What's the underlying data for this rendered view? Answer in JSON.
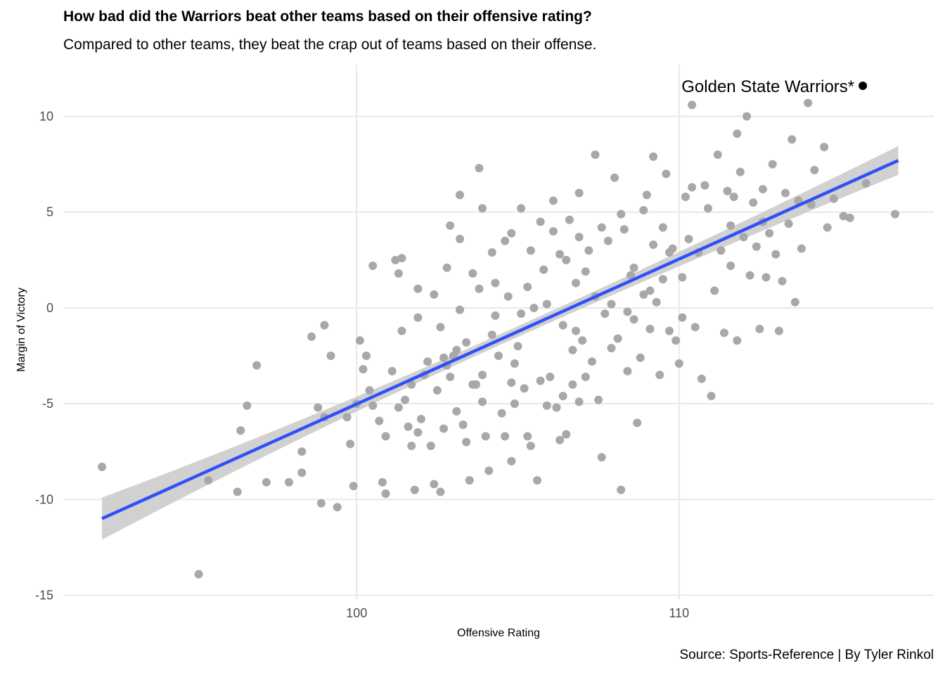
{
  "chart_data": {
    "type": "scatter",
    "title": "How bad did the Warriors beat other teams based on their offensive rating?",
    "subtitle": "Compared to other teams, they beat the crap out of teams based on their offense.",
    "caption": "Source: Sports-Reference | By Tyler Rinkol",
    "xlabel": "Offensive Rating",
    "ylabel": "Margin of Victory",
    "xlim": [
      90.9,
      117.9
    ],
    "ylim": [
      -15.2,
      12.7
    ],
    "x_ticks": [
      100,
      110
    ],
    "y_ticks": [
      10,
      5,
      0,
      -5,
      -10,
      -15
    ],
    "grid": true,
    "colors": {
      "points": "#a8a8a8",
      "highlight": "#000000",
      "trend": "#3050f8",
      "ribbon": "#cccccc",
      "grid": "#e8e8e8"
    },
    "highlight": {
      "label": "Golden State Warriors*",
      "x": 115.7,
      "y": 11.6
    },
    "trend": {
      "method": "linear",
      "x": [
        92.1,
        116.8
      ],
      "y": [
        -11.0,
        7.7
      ],
      "ribbon_lower": [
        -12.1,
        7.0
      ],
      "ribbon_upper": [
        -9.9,
        8.5
      ]
    },
    "points": [
      [
        92.1,
        -8.3
      ],
      [
        95.1,
        -13.9
      ],
      [
        95.4,
        -9.0
      ],
      [
        96.3,
        -9.6
      ],
      [
        96.4,
        -6.4
      ],
      [
        96.6,
        -5.1
      ],
      [
        96.9,
        -3.0
      ],
      [
        97.2,
        -9.1
      ],
      [
        97.9,
        -9.1
      ],
      [
        98.3,
        -7.5
      ],
      [
        98.3,
        -8.6
      ],
      [
        98.6,
        -1.5
      ],
      [
        98.8,
        -5.2
      ],
      [
        98.9,
        -10.2
      ],
      [
        99.0,
        -5.7
      ],
      [
        99.2,
        -2.5
      ],
      [
        99.4,
        -10.4
      ],
      [
        99.7,
        -5.7
      ],
      [
        99.8,
        -7.1
      ],
      [
        99.9,
        -9.3
      ],
      [
        100.0,
        -5.0
      ],
      [
        100.1,
        -1.7
      ],
      [
        100.2,
        -3.2
      ],
      [
        100.3,
        -2.5
      ],
      [
        100.4,
        -4.3
      ],
      [
        100.5,
        2.2
      ],
      [
        100.5,
        -5.1
      ],
      [
        100.7,
        -5.9
      ],
      [
        100.8,
        -9.1
      ],
      [
        100.9,
        -6.7
      ],
      [
        100.9,
        -9.7
      ],
      [
        101.1,
        -3.3
      ],
      [
        101.2,
        2.5
      ],
      [
        101.3,
        1.8
      ],
      [
        101.3,
        -5.2
      ],
      [
        101.4,
        2.6
      ],
      [
        101.5,
        -4.8
      ],
      [
        101.6,
        -6.2
      ],
      [
        101.7,
        -4.0
      ],
      [
        101.7,
        -7.2
      ],
      [
        101.8,
        -9.5
      ],
      [
        101.9,
        1.0
      ],
      [
        101.9,
        -6.5
      ],
      [
        102.0,
        -5.8
      ],
      [
        102.1,
        -3.5
      ],
      [
        102.2,
        -2.8
      ],
      [
        102.3,
        -7.2
      ],
      [
        102.4,
        -9.2
      ],
      [
        102.5,
        -4.3
      ],
      [
        102.6,
        -1.0
      ],
      [
        102.6,
        -9.6
      ],
      [
        102.7,
        -2.6
      ],
      [
        102.7,
        -6.3
      ],
      [
        102.8,
        2.1
      ],
      [
        102.9,
        -3.6
      ],
      [
        103.0,
        -2.5
      ],
      [
        103.1,
        -5.4
      ],
      [
        103.2,
        5.9
      ],
      [
        103.2,
        -0.1
      ],
      [
        103.3,
        -6.1
      ],
      [
        103.4,
        -7.0
      ],
      [
        103.5,
        -9.0
      ],
      [
        103.6,
        1.8
      ],
      [
        103.7,
        -4.0
      ],
      [
        103.8,
        7.3
      ],
      [
        103.8,
        1.0
      ],
      [
        103.9,
        -3.5
      ],
      [
        103.9,
        -4.9
      ],
      [
        104.0,
        -6.7
      ],
      [
        104.1,
        -8.5
      ],
      [
        104.2,
        -1.4
      ],
      [
        104.3,
        -0.4
      ],
      [
        104.4,
        -2.5
      ],
      [
        104.5,
        -5.5
      ],
      [
        104.6,
        -6.7
      ],
      [
        104.7,
        0.6
      ],
      [
        104.8,
        -3.9
      ],
      [
        104.8,
        -8.0
      ],
      [
        104.9,
        -5.0
      ],
      [
        105.0,
        -2.0
      ],
      [
        105.1,
        -0.3
      ],
      [
        105.2,
        -4.2
      ],
      [
        105.3,
        -6.7
      ],
      [
        105.4,
        -7.2
      ],
      [
        105.5,
        0.0
      ],
      [
        105.6,
        -9.0
      ],
      [
        105.7,
        -3.8
      ],
      [
        105.8,
        2.0
      ],
      [
        105.9,
        -5.1
      ],
      [
        106.0,
        -3.6
      ],
      [
        106.1,
        5.6
      ],
      [
        106.1,
        4.0
      ],
      [
        106.2,
        -5.2
      ],
      [
        106.3,
        -6.9
      ],
      [
        106.4,
        -4.6
      ],
      [
        106.5,
        2.5
      ],
      [
        106.5,
        -6.6
      ],
      [
        106.6,
        4.6
      ],
      [
        106.7,
        -4.0
      ],
      [
        106.8,
        1.3
      ],
      [
        106.9,
        6.0
      ],
      [
        106.9,
        -4.9
      ],
      [
        107.0,
        -1.7
      ],
      [
        107.1,
        -3.6
      ],
      [
        107.2,
        3.0
      ],
      [
        107.3,
        -2.8
      ],
      [
        107.4,
        0.6
      ],
      [
        107.5,
        -4.8
      ],
      [
        107.6,
        -7.8
      ],
      [
        107.7,
        -0.3
      ],
      [
        107.8,
        3.5
      ],
      [
        107.9,
        -2.1
      ],
      [
        108.0,
        6.8
      ],
      [
        108.1,
        -1.6
      ],
      [
        108.2,
        -9.5
      ],
      [
        108.3,
        4.1
      ],
      [
        108.4,
        -3.3
      ],
      [
        108.5,
        1.7
      ],
      [
        108.6,
        2.1
      ],
      [
        108.7,
        -6.0
      ],
      [
        108.8,
        -2.6
      ],
      [
        108.9,
        0.7
      ],
      [
        109.0,
        5.9
      ],
      [
        109.1,
        -1.1
      ],
      [
        109.2,
        3.3
      ],
      [
        109.3,
        0.3
      ],
      [
        109.4,
        -3.5
      ],
      [
        109.5,
        1.5
      ],
      [
        109.6,
        7.0
      ],
      [
        109.7,
        -1.2
      ],
      [
        109.8,
        3.1
      ],
      [
        109.9,
        -1.7
      ],
      [
        110.0,
        -2.9
      ],
      [
        110.1,
        1.6
      ],
      [
        110.2,
        5.8
      ],
      [
        110.3,
        3.6
      ],
      [
        110.4,
        6.3
      ],
      [
        110.5,
        -1.0
      ],
      [
        110.6,
        2.9
      ],
      [
        110.7,
        -3.7
      ],
      [
        110.8,
        6.4
      ],
      [
        110.9,
        5.2
      ],
      [
        111.0,
        -4.6
      ],
      [
        111.1,
        0.9
      ],
      [
        111.2,
        8.0
      ],
      [
        111.3,
        3.0
      ],
      [
        111.4,
        -1.3
      ],
      [
        111.5,
        6.1
      ],
      [
        111.6,
        2.2
      ],
      [
        111.7,
        5.8
      ],
      [
        111.8,
        -1.7
      ],
      [
        111.9,
        7.1
      ],
      [
        112.0,
        3.7
      ],
      [
        112.1,
        10.0
      ],
      [
        112.2,
        1.7
      ],
      [
        112.3,
        5.5
      ],
      [
        112.4,
        3.2
      ],
      [
        112.5,
        -1.1
      ],
      [
        112.6,
        6.2
      ],
      [
        112.7,
        1.6
      ],
      [
        112.8,
        3.9
      ],
      [
        112.9,
        7.5
      ],
      [
        113.0,
        2.8
      ],
      [
        113.1,
        -1.2
      ],
      [
        113.2,
        1.4
      ],
      [
        113.3,
        6.0
      ],
      [
        113.4,
        4.4
      ],
      [
        113.5,
        8.8
      ],
      [
        113.6,
        0.3
      ],
      [
        113.7,
        5.6
      ],
      [
        113.8,
        3.1
      ],
      [
        114.0,
        10.7
      ],
      [
        114.1,
        5.4
      ],
      [
        114.2,
        7.2
      ],
      [
        114.5,
        8.4
      ],
      [
        114.6,
        4.2
      ],
      [
        114.8,
        5.7
      ],
      [
        115.1,
        4.8
      ],
      [
        115.3,
        4.7
      ],
      [
        115.8,
        6.5
      ],
      [
        116.7,
        4.9
      ],
      [
        99.0,
        -0.9
      ],
      [
        101.9,
        -0.5
      ],
      [
        103.4,
        -1.8
      ],
      [
        104.6,
        3.5
      ],
      [
        105.7,
        4.5
      ],
      [
        106.3,
        2.8
      ],
      [
        107.4,
        8.0
      ],
      [
        108.9,
        5.1
      ],
      [
        110.4,
        10.6
      ],
      [
        109.2,
        7.9
      ],
      [
        111.8,
        9.1
      ],
      [
        112.6,
        4.5
      ],
      [
        104.2,
        2.9
      ],
      [
        103.2,
        3.6
      ],
      [
        105.3,
        1.1
      ],
      [
        106.8,
        -1.2
      ],
      [
        108.6,
        -0.6
      ],
      [
        110.1,
        -0.5
      ],
      [
        103.9,
        5.2
      ],
      [
        104.9,
        -2.9
      ],
      [
        102.4,
        0.7
      ],
      [
        105.9,
        0.2
      ],
      [
        107.1,
        1.9
      ],
      [
        107.9,
        0.2
      ],
      [
        109.7,
        2.9
      ],
      [
        104.3,
        1.3
      ],
      [
        102.8,
        -3.0
      ],
      [
        106.4,
        -0.9
      ],
      [
        108.2,
        4.9
      ],
      [
        109.5,
        4.2
      ],
      [
        111.6,
        4.3
      ],
      [
        103.1,
        -2.2
      ],
      [
        104.8,
        3.9
      ],
      [
        106.7,
        -2.2
      ],
      [
        105.4,
        3.0
      ],
      [
        103.6,
        -4.0
      ],
      [
        107.6,
        4.2
      ],
      [
        109.1,
        0.9
      ],
      [
        101.4,
        -1.2
      ],
      [
        102.9,
        4.3
      ],
      [
        105.1,
        5.2
      ],
      [
        106.9,
        3.7
      ],
      [
        108.4,
        -0.2
      ]
    ]
  }
}
